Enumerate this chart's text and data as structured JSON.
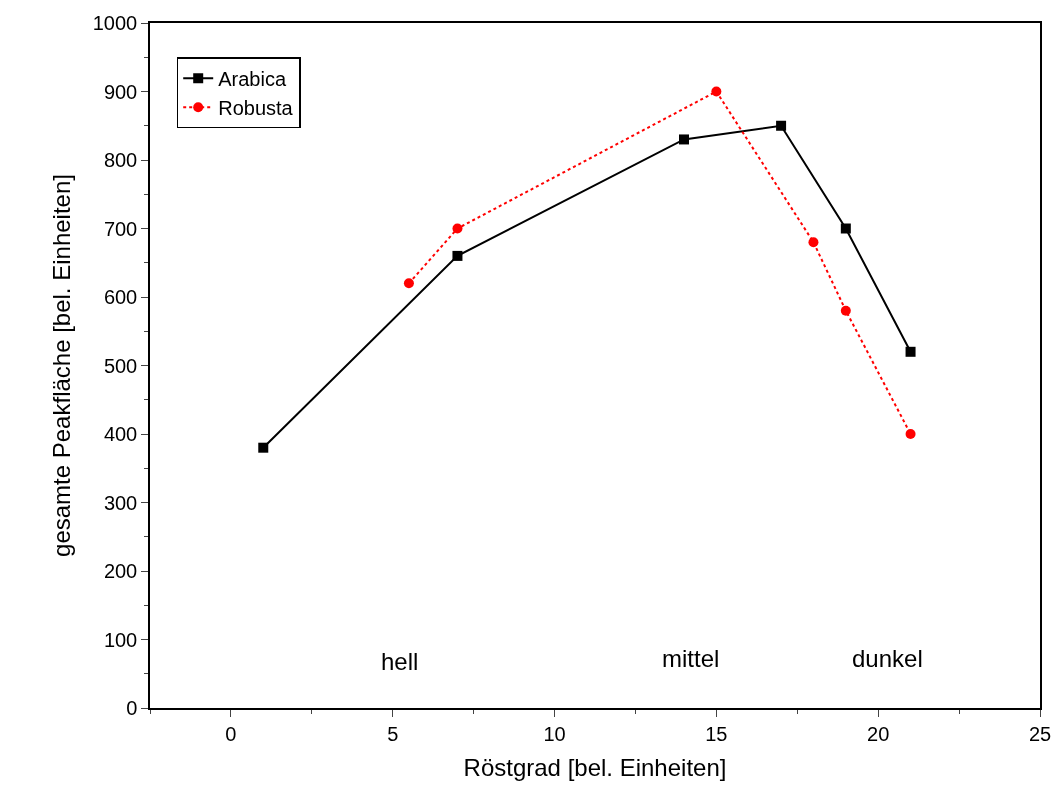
{
  "chart_data": {
    "type": "line",
    "xlabel": "Röstgrad [bel. Einheiten]",
    "ylabel": "gesamte Peakfläche [bel. Einheiten]",
    "xlim": [
      -2.5,
      25
    ],
    "xticks": [
      0,
      5,
      10,
      15,
      20,
      25
    ],
    "ylim": [
      0,
      1000
    ],
    "yticks": [
      0,
      100,
      200,
      300,
      400,
      500,
      600,
      700,
      800,
      900,
      1000
    ],
    "legend": "top left",
    "series": [
      {
        "name": "Arabica",
        "color": "#000000",
        "marker": "square",
        "line_style": "solid",
        "x": [
          1,
          7,
          14,
          17,
          19,
          21
        ],
        "values": [
          380,
          660,
          830,
          850,
          700,
          520
        ]
      },
      {
        "name": "Robusta",
        "color": "#ff0000",
        "marker": "circle",
        "line_style": "dotted",
        "x": [
          5.5,
          7,
          15,
          18,
          19,
          21
        ],
        "values": [
          620,
          700,
          900,
          680,
          580,
          400
        ]
      }
    ],
    "annotations": [
      "hell",
      "mittel",
      "dunkel"
    ]
  }
}
